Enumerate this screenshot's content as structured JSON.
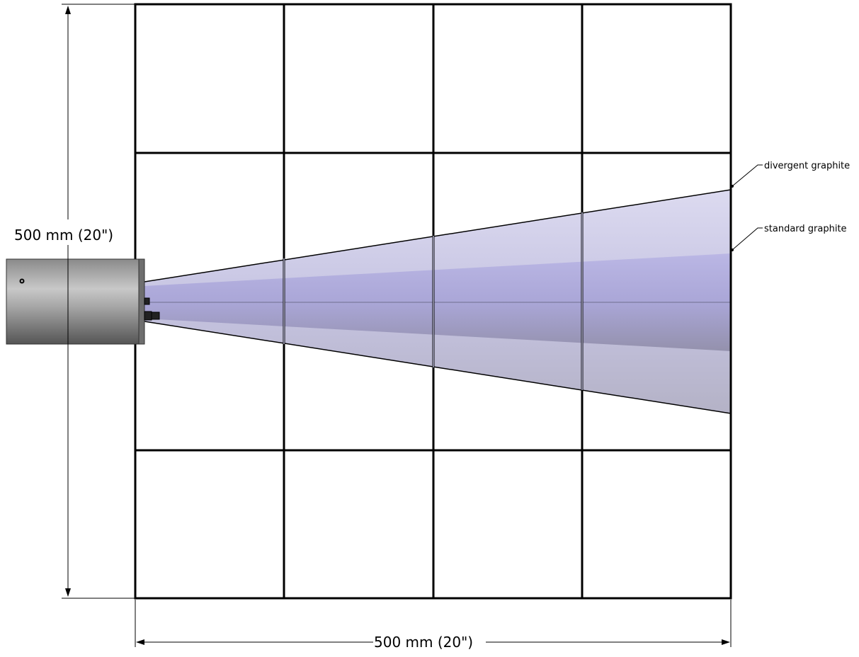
{
  "dimensions": {
    "height_label": "500 mm (20\")",
    "width_label": "500 mm (20\")"
  },
  "grid": {
    "columns": 4,
    "rows": 4
  },
  "beam_labels": {
    "divergent": "divergent graphite",
    "standard": "standard graphite"
  },
  "colors": {
    "grid_line": "#000000",
    "divergent_beam": "#c9c7e3",
    "standard_beam": "#aaa6d8",
    "source_body": "#9a9a9a"
  }
}
